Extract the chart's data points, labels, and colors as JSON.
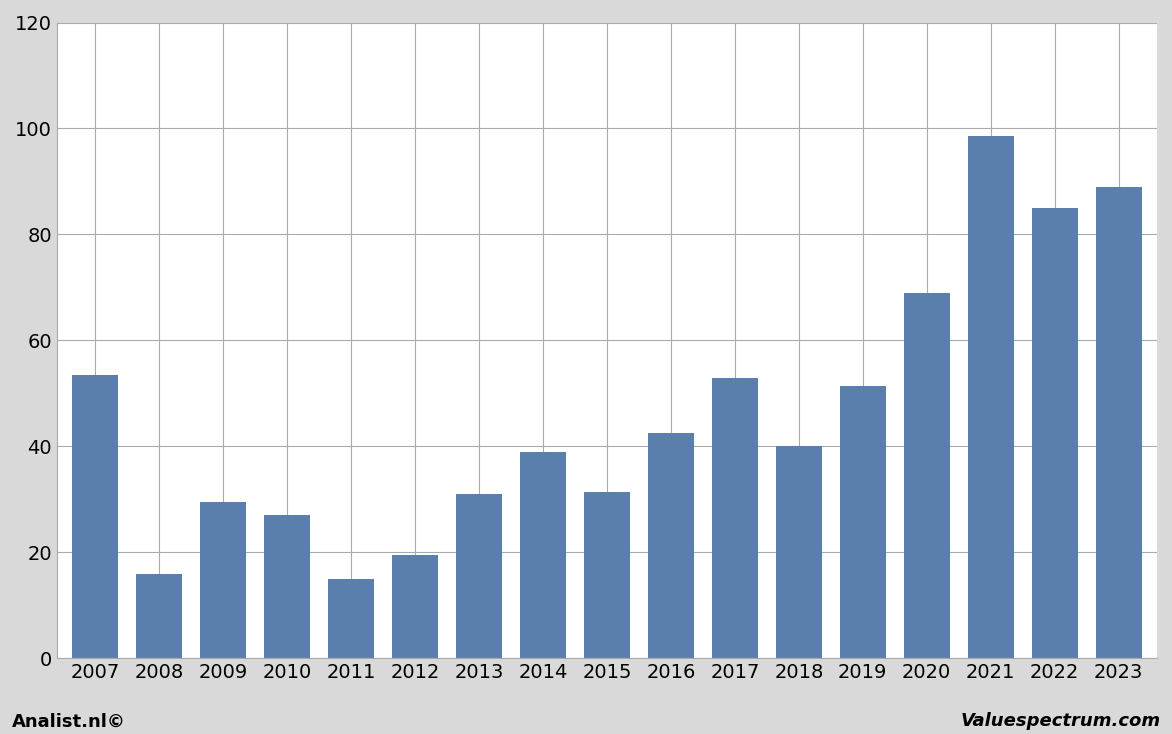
{
  "categories": [
    "2007",
    "2008",
    "2009",
    "2010",
    "2011",
    "2012",
    "2013",
    "2014",
    "2015",
    "2016",
    "2017",
    "2018",
    "2019",
    "2020",
    "2021",
    "2022",
    "2023"
  ],
  "values": [
    53.5,
    16,
    29.5,
    27,
    15,
    19.5,
    31,
    39,
    31.5,
    42.5,
    53,
    40,
    51.5,
    69,
    98.5,
    85,
    89
  ],
  "bar_color": "#5b7fad",
  "background_color": "#d9d9d9",
  "plot_bg_color": "#ffffff",
  "ylim": [
    0,
    120
  ],
  "yticks": [
    0,
    20,
    40,
    60,
    80,
    100,
    120
  ],
  "grid_color": "#aaaaaa",
  "bottom_left_text": "Analist.nl©",
  "bottom_right_text": "Valuespectrum.com",
  "tick_fontsize": 14,
  "footer_fontsize": 13
}
